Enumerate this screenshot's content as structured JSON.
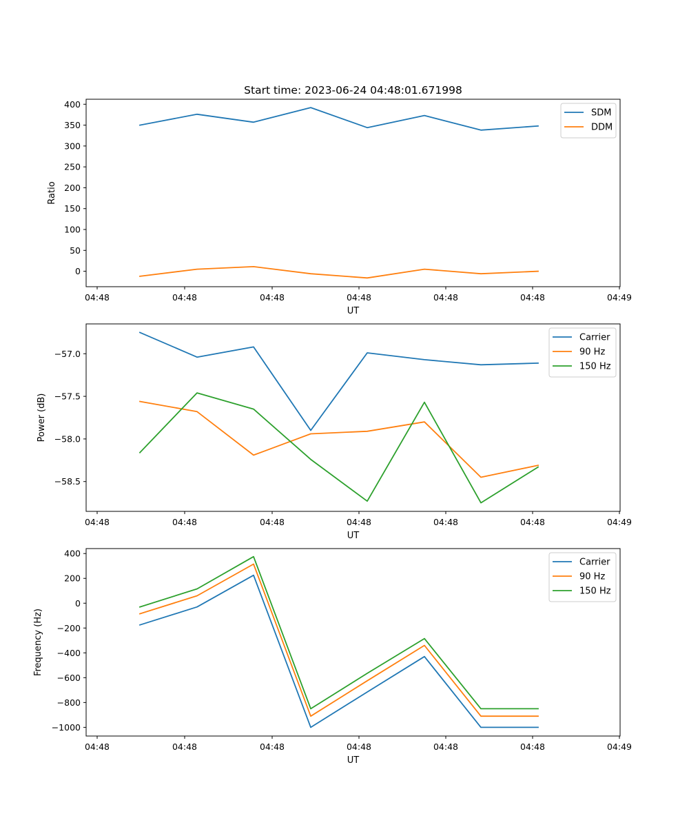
{
  "chart_data": [
    {
      "type": "line",
      "title": "Start time: 2023-06-24 04:48:01.671998",
      "xlabel": "UT",
      "ylabel": "Ratio",
      "x": [
        "04:48:02",
        "04:48:03",
        "04:48:04",
        "04:48:05",
        "04:48:06",
        "04:48:07",
        "04:48:08",
        "04:48:09"
      ],
      "xticks": [
        "04:48",
        "04:48",
        "04:48",
        "04:48",
        "04:48",
        "04:48",
        "04:48",
        "04:49"
      ],
      "ylim": [
        -37,
        412
      ],
      "yticks": [
        0,
        50,
        100,
        150,
        200,
        250,
        300,
        350,
        400
      ],
      "legend": "top-right",
      "grid": false,
      "series": [
        {
          "name": "SDM",
          "color": "#1f77b4",
          "values": [
            350,
            376,
            357,
            392,
            344,
            373,
            338,
            348
          ]
        },
        {
          "name": "DDM",
          "color": "#ff7f0e",
          "values": [
            -12,
            5,
            11,
            -6,
            -16,
            5,
            -6,
            0
          ]
        }
      ]
    },
    {
      "type": "line",
      "title": "",
      "xlabel": "UT",
      "ylabel": "Power (dB)",
      "x": [
        "04:48:02",
        "04:48:03",
        "04:48:04",
        "04:48:05",
        "04:48:06",
        "04:48:07",
        "04:48:08",
        "04:48:09"
      ],
      "xticks": [
        "04:48",
        "04:48",
        "04:48",
        "04:48",
        "04:48",
        "04:48",
        "04:48",
        "04:49"
      ],
      "ylim": [
        -58.85,
        -56.65
      ],
      "yticks": [
        -57.0,
        -57.5,
        -58.0,
        -58.5
      ],
      "ytick_labels": [
        "−57.0",
        "−57.5",
        "−58.0",
        "−58.5"
      ],
      "legend": "top-right",
      "grid": false,
      "series": [
        {
          "name": "Carrier",
          "color": "#1f77b4",
          "values": [
            -56.75,
            -57.04,
            -56.92,
            -57.9,
            -56.99,
            -57.07,
            -57.13,
            -57.11
          ]
        },
        {
          "name": "90 Hz",
          "color": "#ff7f0e",
          "values": [
            -57.56,
            -57.68,
            -58.19,
            -57.94,
            -57.91,
            -57.8,
            -58.45,
            -58.31
          ]
        },
        {
          "name": "150 Hz",
          "color": "#2ca02c",
          "values": [
            -58.16,
            -57.46,
            -57.65,
            -58.24,
            -58.73,
            -57.57,
            -58.75,
            -58.33
          ]
        }
      ]
    },
    {
      "type": "line",
      "title": "",
      "xlabel": "UT",
      "ylabel": "Frequency (Hz)",
      "x": [
        "04:48:02",
        "04:48:03",
        "04:48:04",
        "04:48:05",
        "04:48:06",
        "04:48:07",
        "04:48:08",
        "04:48:09"
      ],
      "xticks": [
        "04:48",
        "04:48",
        "04:48",
        "04:48",
        "04:48",
        "04:48",
        "04:48",
        "04:49"
      ],
      "ylim": [
        -1070,
        440
      ],
      "yticks": [
        400,
        200,
        0,
        -200,
        -400,
        -600,
        -800,
        -1000
      ],
      "ytick_labels": [
        "400",
        "200",
        "0",
        "−200",
        "−400",
        "−600",
        "−800",
        "−1000"
      ],
      "legend": "top-right",
      "grid": false,
      "series": [
        {
          "name": "Carrier",
          "color": "#1f77b4",
          "values": [
            -175,
            -30,
            225,
            -1000,
            -715,
            -430,
            -1000,
            -1000
          ]
        },
        {
          "name": "90 Hz",
          "color": "#ff7f0e",
          "values": [
            -85,
            60,
            315,
            -910,
            -625,
            -340,
            -910,
            -910
          ]
        },
        {
          "name": "150 Hz",
          "color": "#2ca02c",
          "values": [
            -30,
            115,
            375,
            -850,
            -565,
            -285,
            -850,
            -850
          ]
        }
      ]
    }
  ]
}
